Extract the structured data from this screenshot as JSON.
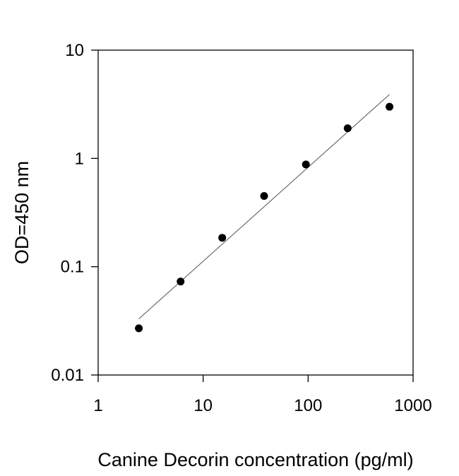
{
  "chart_data": {
    "type": "scatter",
    "title": "",
    "xlabel": "Canine Decorin concentration (pg/ml)",
    "ylabel": "OD=450 nm",
    "xscale": "log",
    "yscale": "log",
    "xlim": [
      1,
      1000
    ],
    "ylim": [
      0.01,
      10
    ],
    "x_ticks": [
      "1",
      "10",
      "100",
      "1000"
    ],
    "y_ticks": [
      "0.01",
      "0.1",
      "1",
      "10"
    ],
    "grid": false,
    "legend": "none",
    "colors": {
      "points": "#000000",
      "fit_line": "#555555",
      "axes": "#000000"
    },
    "series": [
      {
        "x": [
          2.44,
          6.1,
          15.2,
          38.1,
          95.3,
          238,
          596
        ],
        "y": [
          0.027,
          0.073,
          0.185,
          0.45,
          0.88,
          1.9,
          3.0
        ]
      }
    ],
    "fit_line": {
      "x": [
        2.44,
        596
      ],
      "y": [
        0.033,
        3.9
      ]
    }
  }
}
